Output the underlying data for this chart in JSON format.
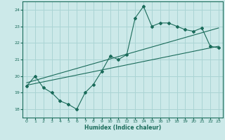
{
  "xlabel": "Humidex (Indice chaleur)",
  "ylabel": "",
  "bg_color": "#cce9e9",
  "grid_color": "#aad4d4",
  "line_color": "#1a6b5a",
  "xlim": [
    -0.5,
    23.5
  ],
  "ylim": [
    17.5,
    24.5
  ],
  "xticks": [
    0,
    1,
    2,
    3,
    4,
    5,
    6,
    7,
    8,
    9,
    10,
    11,
    12,
    13,
    14,
    15,
    16,
    17,
    18,
    19,
    20,
    21,
    22,
    23
  ],
  "yticks": [
    18,
    19,
    20,
    21,
    22,
    23,
    24
  ],
  "data_line": {
    "x": [
      0,
      1,
      2,
      3,
      4,
      5,
      6,
      7,
      8,
      9,
      10,
      11,
      12,
      13,
      14,
      15,
      16,
      17,
      18,
      19,
      20,
      21,
      22,
      23
    ],
    "y": [
      19.4,
      20.0,
      19.3,
      19.0,
      18.5,
      18.3,
      18.0,
      19.0,
      19.5,
      20.3,
      21.2,
      21.0,
      21.3,
      23.5,
      24.2,
      23.0,
      23.2,
      23.2,
      23.0,
      22.8,
      22.7,
      22.9,
      21.8,
      21.7
    ]
  },
  "trend_line1": {
    "x": [
      0,
      23
    ],
    "y": [
      19.45,
      21.8
    ]
  },
  "trend_line2": {
    "x": [
      0,
      23
    ],
    "y": [
      19.6,
      22.9
    ]
  }
}
